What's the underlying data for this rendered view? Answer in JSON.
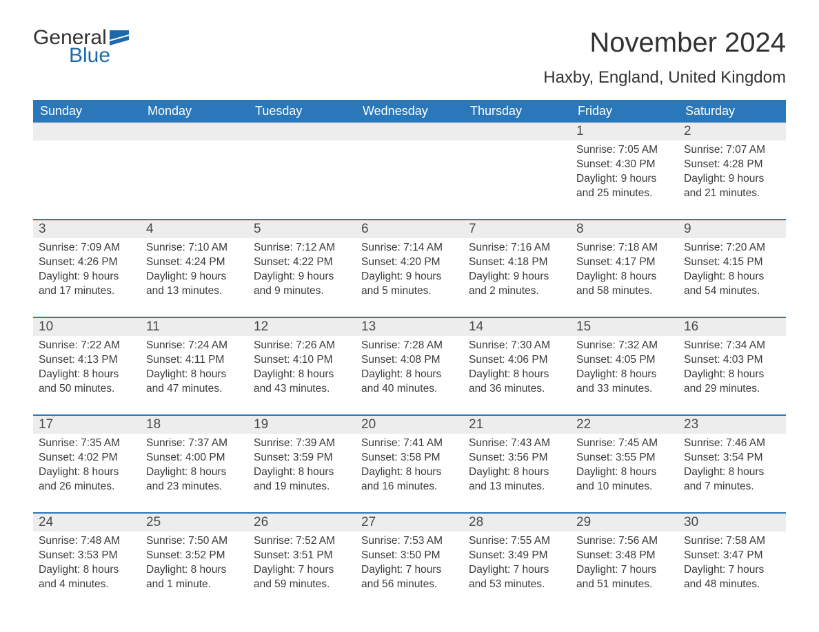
{
  "logo": {
    "word1": "General",
    "word2": "Blue",
    "flag_color": "#1d69aa",
    "text_color1": "#323232",
    "text_color2": "#1d69aa"
  },
  "title": "November 2024",
  "subtitle": "Haxby, England, United Kingdom",
  "colors": {
    "header_bg": "#2a77b9",
    "header_text": "#ffffff",
    "daynum_bg": "#ededed",
    "daynum_text": "#4a4a4a",
    "body_text": "#3a3a3a",
    "page_bg": "#ffffff",
    "separator": "#2a77b9"
  },
  "font_sizes": {
    "title": 40,
    "subtitle": 24,
    "header": 18,
    "daynum": 19,
    "body": 15.5,
    "logo": 30
  },
  "weekdays": [
    "Sunday",
    "Monday",
    "Tuesday",
    "Wednesday",
    "Thursday",
    "Friday",
    "Saturday"
  ],
  "weeks": [
    [
      null,
      null,
      null,
      null,
      null,
      {
        "n": "1",
        "sunrise": "Sunrise: 7:05 AM",
        "sunset": "Sunset: 4:30 PM",
        "d1": "Daylight: 9 hours",
        "d2": "and 25 minutes."
      },
      {
        "n": "2",
        "sunrise": "Sunrise: 7:07 AM",
        "sunset": "Sunset: 4:28 PM",
        "d1": "Daylight: 9 hours",
        "d2": "and 21 minutes."
      }
    ],
    [
      {
        "n": "3",
        "sunrise": "Sunrise: 7:09 AM",
        "sunset": "Sunset: 4:26 PM",
        "d1": "Daylight: 9 hours",
        "d2": "and 17 minutes."
      },
      {
        "n": "4",
        "sunrise": "Sunrise: 7:10 AM",
        "sunset": "Sunset: 4:24 PM",
        "d1": "Daylight: 9 hours",
        "d2": "and 13 minutes."
      },
      {
        "n": "5",
        "sunrise": "Sunrise: 7:12 AM",
        "sunset": "Sunset: 4:22 PM",
        "d1": "Daylight: 9 hours",
        "d2": "and 9 minutes."
      },
      {
        "n": "6",
        "sunrise": "Sunrise: 7:14 AM",
        "sunset": "Sunset: 4:20 PM",
        "d1": "Daylight: 9 hours",
        "d2": "and 5 minutes."
      },
      {
        "n": "7",
        "sunrise": "Sunrise: 7:16 AM",
        "sunset": "Sunset: 4:18 PM",
        "d1": "Daylight: 9 hours",
        "d2": "and 2 minutes."
      },
      {
        "n": "8",
        "sunrise": "Sunrise: 7:18 AM",
        "sunset": "Sunset: 4:17 PM",
        "d1": "Daylight: 8 hours",
        "d2": "and 58 minutes."
      },
      {
        "n": "9",
        "sunrise": "Sunrise: 7:20 AM",
        "sunset": "Sunset: 4:15 PM",
        "d1": "Daylight: 8 hours",
        "d2": "and 54 minutes."
      }
    ],
    [
      {
        "n": "10",
        "sunrise": "Sunrise: 7:22 AM",
        "sunset": "Sunset: 4:13 PM",
        "d1": "Daylight: 8 hours",
        "d2": "and 50 minutes."
      },
      {
        "n": "11",
        "sunrise": "Sunrise: 7:24 AM",
        "sunset": "Sunset: 4:11 PM",
        "d1": "Daylight: 8 hours",
        "d2": "and 47 minutes."
      },
      {
        "n": "12",
        "sunrise": "Sunrise: 7:26 AM",
        "sunset": "Sunset: 4:10 PM",
        "d1": "Daylight: 8 hours",
        "d2": "and 43 minutes."
      },
      {
        "n": "13",
        "sunrise": "Sunrise: 7:28 AM",
        "sunset": "Sunset: 4:08 PM",
        "d1": "Daylight: 8 hours",
        "d2": "and 40 minutes."
      },
      {
        "n": "14",
        "sunrise": "Sunrise: 7:30 AM",
        "sunset": "Sunset: 4:06 PM",
        "d1": "Daylight: 8 hours",
        "d2": "and 36 minutes."
      },
      {
        "n": "15",
        "sunrise": "Sunrise: 7:32 AM",
        "sunset": "Sunset: 4:05 PM",
        "d1": "Daylight: 8 hours",
        "d2": "and 33 minutes."
      },
      {
        "n": "16",
        "sunrise": "Sunrise: 7:34 AM",
        "sunset": "Sunset: 4:03 PM",
        "d1": "Daylight: 8 hours",
        "d2": "and 29 minutes."
      }
    ],
    [
      {
        "n": "17",
        "sunrise": "Sunrise: 7:35 AM",
        "sunset": "Sunset: 4:02 PM",
        "d1": "Daylight: 8 hours",
        "d2": "and 26 minutes."
      },
      {
        "n": "18",
        "sunrise": "Sunrise: 7:37 AM",
        "sunset": "Sunset: 4:00 PM",
        "d1": "Daylight: 8 hours",
        "d2": "and 23 minutes."
      },
      {
        "n": "19",
        "sunrise": "Sunrise: 7:39 AM",
        "sunset": "Sunset: 3:59 PM",
        "d1": "Daylight: 8 hours",
        "d2": "and 19 minutes."
      },
      {
        "n": "20",
        "sunrise": "Sunrise: 7:41 AM",
        "sunset": "Sunset: 3:58 PM",
        "d1": "Daylight: 8 hours",
        "d2": "and 16 minutes."
      },
      {
        "n": "21",
        "sunrise": "Sunrise: 7:43 AM",
        "sunset": "Sunset: 3:56 PM",
        "d1": "Daylight: 8 hours",
        "d2": "and 13 minutes."
      },
      {
        "n": "22",
        "sunrise": "Sunrise: 7:45 AM",
        "sunset": "Sunset: 3:55 PM",
        "d1": "Daylight: 8 hours",
        "d2": "and 10 minutes."
      },
      {
        "n": "23",
        "sunrise": "Sunrise: 7:46 AM",
        "sunset": "Sunset: 3:54 PM",
        "d1": "Daylight: 8 hours",
        "d2": "and 7 minutes."
      }
    ],
    [
      {
        "n": "24",
        "sunrise": "Sunrise: 7:48 AM",
        "sunset": "Sunset: 3:53 PM",
        "d1": "Daylight: 8 hours",
        "d2": "and 4 minutes."
      },
      {
        "n": "25",
        "sunrise": "Sunrise: 7:50 AM",
        "sunset": "Sunset: 3:52 PM",
        "d1": "Daylight: 8 hours",
        "d2": "and 1 minute."
      },
      {
        "n": "26",
        "sunrise": "Sunrise: 7:52 AM",
        "sunset": "Sunset: 3:51 PM",
        "d1": "Daylight: 7 hours",
        "d2": "and 59 minutes."
      },
      {
        "n": "27",
        "sunrise": "Sunrise: 7:53 AM",
        "sunset": "Sunset: 3:50 PM",
        "d1": "Daylight: 7 hours",
        "d2": "and 56 minutes."
      },
      {
        "n": "28",
        "sunrise": "Sunrise: 7:55 AM",
        "sunset": "Sunset: 3:49 PM",
        "d1": "Daylight: 7 hours",
        "d2": "and 53 minutes."
      },
      {
        "n": "29",
        "sunrise": "Sunrise: 7:56 AM",
        "sunset": "Sunset: 3:48 PM",
        "d1": "Daylight: 7 hours",
        "d2": "and 51 minutes."
      },
      {
        "n": "30",
        "sunrise": "Sunrise: 7:58 AM",
        "sunset": "Sunset: 3:47 PM",
        "d1": "Daylight: 7 hours",
        "d2": "and 48 minutes."
      }
    ]
  ]
}
